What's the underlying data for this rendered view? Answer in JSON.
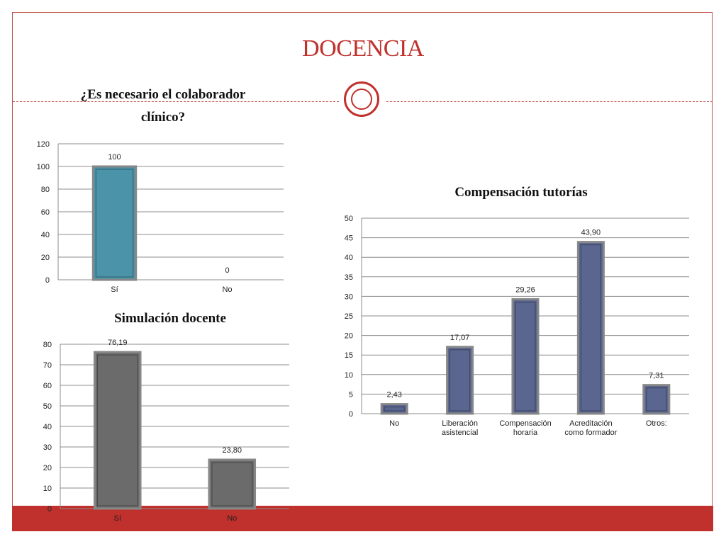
{
  "slide": {
    "title": "DOCENCIA"
  },
  "colors": {
    "accent": "#c0302c",
    "bar_teal": "#4a93a8",
    "bar_gray": "#6b6b6b",
    "bar_blue": "#5a6690"
  },
  "chart_data": [
    {
      "id": "colaborador",
      "type": "bar",
      "title": "¿Es necesario el colaborador clínico?",
      "title_lines": [
        "¿Es necesario el colaborador",
        "clínico?"
      ],
      "categories": [
        "Sí",
        "No"
      ],
      "values": [
        100,
        0
      ],
      "value_labels": [
        "100",
        "0"
      ],
      "ylim": [
        0,
        120
      ],
      "yticks": [
        0,
        20,
        40,
        60,
        80,
        100,
        120
      ],
      "grid": true,
      "color": "#4a93a8"
    },
    {
      "id": "simulacion",
      "type": "bar",
      "title": "Simulación docente",
      "categories": [
        "Sí",
        "No"
      ],
      "values": [
        76.19,
        23.8
      ],
      "value_labels": [
        "76,19",
        "23,80"
      ],
      "ylim": [
        0,
        80
      ],
      "yticks": [
        0,
        10,
        20,
        30,
        40,
        50,
        60,
        70,
        80
      ],
      "grid": true,
      "color": "#6b6b6b"
    },
    {
      "id": "compensacion",
      "type": "bar",
      "title": "Compensación tutorías",
      "categories": [
        "No",
        "Liberación asistencial",
        "Compensación horaria",
        "Acreditación como formador",
        "Otros:"
      ],
      "category_lines": [
        [
          "No"
        ],
        [
          "Liberación",
          "asistencial"
        ],
        [
          "Compensación",
          "horaria"
        ],
        [
          "Acreditación",
          "como formador"
        ],
        [
          "Otros:"
        ]
      ],
      "values": [
        2.43,
        17.07,
        29.26,
        43.9,
        7.31
      ],
      "value_labels": [
        "2,43",
        "17,07",
        "29,26",
        "43,90",
        "7,31"
      ],
      "ylim": [
        0,
        50
      ],
      "yticks": [
        0,
        5,
        10,
        15,
        20,
        25,
        30,
        35,
        40,
        45,
        50
      ],
      "grid": true,
      "color": "#5a6690"
    }
  ]
}
